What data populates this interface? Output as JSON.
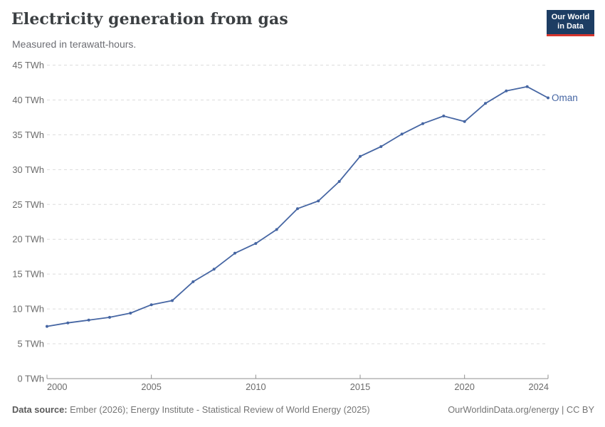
{
  "header": {
    "title": "Electricity generation from gas",
    "subtitle": "Measured in terawatt-hours."
  },
  "logo": {
    "line1": "Our World",
    "line2": "in Data"
  },
  "entity_label": "Oman",
  "footer": {
    "datasource_label": "Data source:",
    "datasource_text": " Ember (2026); Energy Institute - Statistical Review of World Energy (2025)",
    "credit": "OurWorldinData.org/energy | CC BY"
  },
  "colors": {
    "line": "#4666a3",
    "grid": "#dcdcdc",
    "axis": "#8f8f8f",
    "axis_text": "#6b6b6b",
    "logo_bg": "#1d3d63",
    "logo_bar": "#d7352d"
  },
  "chart_data": {
    "type": "line",
    "title": "Electricity generation from gas",
    "subtitle": "Measured in terawatt-hours.",
    "unit": "TWh",
    "x": [
      2000,
      2001,
      2002,
      2003,
      2004,
      2005,
      2006,
      2007,
      2008,
      2009,
      2010,
      2011,
      2012,
      2013,
      2014,
      2015,
      2016,
      2017,
      2018,
      2019,
      2020,
      2021,
      2022,
      2023,
      2024
    ],
    "series": [
      {
        "name": "Oman",
        "color": "#4666a3",
        "values": [
          7.5,
          8.0,
          8.4,
          8.8,
          9.4,
          10.6,
          11.2,
          13.9,
          15.7,
          18.0,
          19.4,
          21.4,
          24.4,
          25.5,
          28.3,
          31.9,
          33.3,
          35.1,
          36.6,
          37.7,
          36.9,
          39.5,
          41.3,
          41.9,
          40.3
        ]
      }
    ],
    "xlim": [
      2000,
      2024
    ],
    "ylim": [
      0,
      45
    ],
    "x_ticks": [
      2000,
      2005,
      2010,
      2015,
      2020,
      2024
    ],
    "y_ticks": [
      0,
      5,
      10,
      15,
      20,
      25,
      30,
      35,
      40,
      45
    ],
    "y_tick_suffix": " TWh",
    "grid": "horizontal-dashed",
    "legend_position": "end-of-line"
  }
}
